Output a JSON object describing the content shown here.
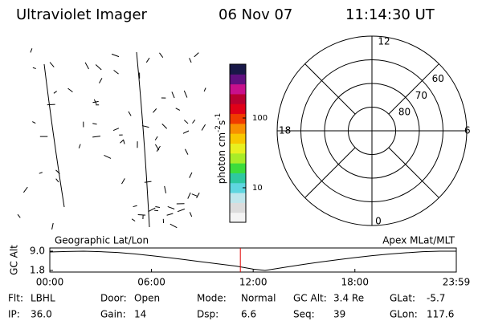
{
  "header": {
    "title": "Ultraviolet Imager",
    "date": "06 Nov 07",
    "time": "11:14:30 UT"
  },
  "colorbar": {
    "label": [
      "photon cm",
      "-2",
      "s",
      "-1"
    ],
    "log": true,
    "lim": [
      3.2,
      590
    ],
    "ticks": [
      10,
      100
    ],
    "colors": [
      "#f4f4f4",
      "#dcdcdc",
      "#bfe6ec",
      "#5fd6e0",
      "#2ec8a0",
      "#3cdc3c",
      "#a8ec28",
      "#e8f020",
      "#f8c800",
      "#f89000",
      "#f03c00",
      "#e00018",
      "#b80030",
      "#c8108c",
      "#601080",
      "#181848"
    ]
  },
  "polar": {
    "mlt_labels": [
      "12",
      "6",
      "0",
      "18"
    ],
    "lat_labels": [
      "80",
      "70",
      "60"
    ]
  },
  "orbit": {
    "y_label": "GC Alt",
    "left_label": "Geographic Lat/Lon",
    "right_label": "Apex MLat/MLT",
    "ylim": [
      1.8,
      9.0
    ],
    "yticks": [
      {
        "value": 9.0,
        "label": "9.0"
      },
      {
        "value": 1.8,
        "label": "1.8"
      }
    ],
    "xlim": [
      0,
      23.983
    ],
    "xticks": [
      {
        "value": 0,
        "label": "00:00"
      },
      {
        "value": 6,
        "label": "06:00"
      },
      {
        "value": 12,
        "label": "12:00"
      },
      {
        "value": 18,
        "label": "18:00"
      },
      {
        "value": 23.983,
        "label": "23:59"
      }
    ],
    "x": [
      0,
      1,
      2,
      3,
      4,
      5,
      6,
      7,
      8,
      9,
      10,
      11,
      12,
      12.7,
      13,
      14,
      15,
      16,
      17,
      18,
      19,
      20,
      21,
      22,
      23,
      23.983
    ],
    "values": [
      8.7,
      8.9,
      9.0,
      8.8,
      8.5,
      8.0,
      7.3,
      6.6,
      5.8,
      5.0,
      4.2,
      3.4,
      2.3,
      1.8,
      2.1,
      3.1,
      4.1,
      5.0,
      5.8,
      6.6,
      7.3,
      7.9,
      8.4,
      8.8,
      9.0,
      9.0
    ],
    "marker_x": 11.242,
    "marker_color": "#e00000"
  },
  "footer": {
    "fields": [
      {
        "label": "Flt:",
        "value": "LBHL"
      },
      {
        "label": "Door:",
        "value": "Open"
      },
      {
        "label": "Mode:",
        "value": "Normal"
      },
      {
        "label": "GC Alt:",
        "value": "3.4 Re"
      },
      {
        "label": "GLat:",
        "value": "-5.7"
      },
      {
        "label": "IP:",
        "value": "36.0"
      },
      {
        "label": "Gain:",
        "value": "14"
      },
      {
        "label": "Dsp:",
        "value": "6.6"
      },
      {
        "label": "Seq:",
        "value": "39"
      },
      {
        "label": "GLon:",
        "value": "117.6"
      }
    ]
  }
}
